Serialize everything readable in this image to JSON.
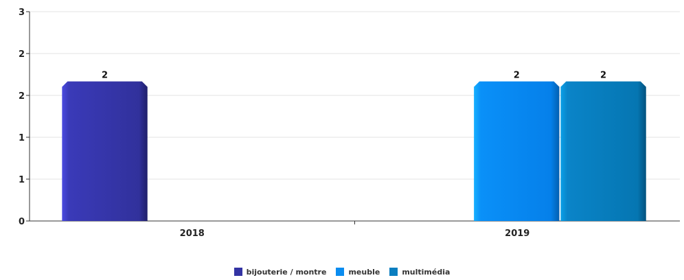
{
  "chart_data": {
    "type": "bar",
    "categories": [
      "2018",
      "2019"
    ],
    "series": [
      {
        "name": "bijouterie / montre",
        "values": [
          2,
          null
        ],
        "color": "#3d3daa"
      },
      {
        "name": "meuble",
        "values": [
          null,
          2
        ],
        "color": "#0a8cf0"
      },
      {
        "name": "multimédia",
        "values": [
          null,
          2
        ],
        "color": "#0a7ec0"
      }
    ],
    "ylim": [
      0,
      3
    ],
    "y_tick_labels": [
      "0",
      "1",
      "1",
      "2",
      "2",
      "3"
    ],
    "grid": true,
    "legend_position": "bottom"
  }
}
